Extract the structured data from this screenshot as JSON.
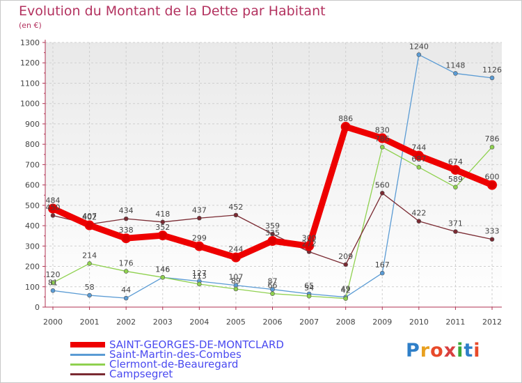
{
  "header": {
    "title": "Evolution du Montant de la Dette par Habitant",
    "subtitle": "(en €)"
  },
  "logo": {
    "text": "Proxiti",
    "colors": [
      "#2f7fc8",
      "#e8a020",
      "#e84a2a",
      "#d84040",
      "#3aa83a",
      "#2f7fc8",
      "#e84a2a"
    ]
  },
  "chart_data": {
    "type": "line",
    "title": "Evolution du Montant de la Dette par Habitant",
    "subtitle": "(en €)",
    "x": [
      "2000",
      "2001",
      "2002",
      "2003",
      "2004",
      "2005",
      "2006",
      "2007",
      "2008",
      "2009",
      "2010",
      "2011",
      "2012"
    ],
    "ylim": [
      0,
      1300
    ],
    "yticks": [
      0,
      100,
      200,
      300,
      400,
      500,
      600,
      700,
      800,
      900,
      1000,
      1100,
      1200,
      1300
    ],
    "grid": true,
    "legend_position": "bottom-left",
    "series": [
      {
        "name": "SAINT-GEORGES-DE-MONTCLARD",
        "color": "#ee0000",
        "width": 9,
        "marker": 6,
        "values": [
          484,
          402,
          338,
          352,
          299,
          244,
          325,
          300,
          886,
          830,
          744,
          674,
          600
        ],
        "labels": [
          "484",
          "402",
          "338",
          "352",
          "299",
          "244",
          "325",
          "300",
          "886",
          "830",
          "744",
          "674",
          "600"
        ]
      },
      {
        "name": "Saint-Martin-des-Combes",
        "color": "#5a9bd4",
        "width": 1.3,
        "marker": 3,
        "values": [
          81,
          58,
          44,
          146,
          127,
          107,
          87,
          65,
          49,
          167,
          1240,
          1148,
          1126
        ],
        "labels": [
          "81",
          "58",
          "44",
          "146",
          "127",
          "107",
          "87",
          "65",
          "49",
          "167",
          "1240",
          "1148",
          "1126"
        ]
      },
      {
        "name": "Clermont-de-Beauregard",
        "color": "#8fd14f",
        "width": 1.3,
        "marker": 3,
        "values": [
          120,
          214,
          176,
          146,
          113,
          89,
          66,
          54,
          42,
          786,
          687,
          589,
          786
        ],
        "labels": [
          "120",
          "214",
          "176",
          "146",
          "113",
          "89",
          "66",
          "54",
          "42",
          "786",
          "687",
          "589",
          "786"
        ]
      },
      {
        "name": "Campsegret",
        "color": "#7a2a32",
        "width": 1.3,
        "marker": 3,
        "values": [
          450,
          407,
          434,
          418,
          437,
          452,
          359,
          272,
          209,
          560,
          422,
          371,
          333
        ],
        "labels": [
          "450",
          "407",
          "434",
          "418",
          "437",
          "452",
          "359",
          "272",
          "209",
          "560",
          "422",
          "371",
          "333"
        ]
      }
    ]
  }
}
